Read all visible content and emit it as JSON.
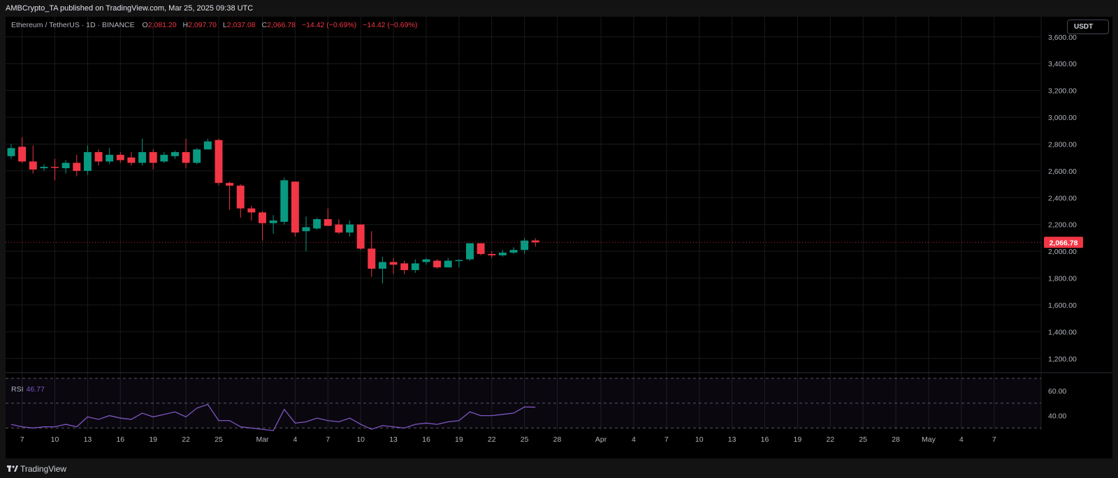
{
  "header": {
    "published": "AMBCrypto_TA published on TradingView.com, Mar 25, 2025 09:38 UTC"
  },
  "legend": {
    "symbol": "Ethereum / TetherUS · 1D · BINANCE",
    "open_label": "O",
    "open": "2,081.20",
    "high_label": "H",
    "high": "2,097.70",
    "low_label": "L",
    "low": "2,037.08",
    "close_label": "C",
    "close": "2,066.78",
    "change": "−14.42 (−0.69%)",
    "change2": "−14.42 (−0.69%)"
  },
  "currency_button": "USDT",
  "rsi": {
    "label": "RSI",
    "value": "46.77"
  },
  "footer": {
    "brand": "TradingView"
  },
  "colors": {
    "up": "#089981",
    "down": "#f23645",
    "rsi": "#7e57c2",
    "grid": "#1a1a1a",
    "axis_text": "#b2b5be",
    "background": "#000000"
  },
  "chart_data": [
    {
      "type": "candlestick",
      "title": "Ethereum / TetherUS · 1D · BINANCE",
      "ylim": [
        1100,
        3750
      ],
      "yticks": [
        1200,
        1400,
        1600,
        1800,
        2000,
        2200,
        2400,
        2600,
        2800,
        3000,
        3200,
        3400,
        3600
      ],
      "ytick_labels": [
        "1,200.00",
        "1,400.00",
        "1,600.00",
        "1,800.00",
        "2,000.00",
        "2,200.00",
        "2,400.00",
        "2,600.00",
        "2,800.00",
        "3,000.00",
        "3,200.00",
        "3,400.00",
        "3,600.00"
      ],
      "last_price": 2066.78,
      "last_price_label": "2,066.78",
      "x_start": "2025-02-06",
      "x_end": "2025-05-09",
      "xticks": [
        {
          "date": "2025-02-07",
          "label": "7"
        },
        {
          "date": "2025-02-10",
          "label": "10"
        },
        {
          "date": "2025-02-13",
          "label": "13"
        },
        {
          "date": "2025-02-16",
          "label": "16"
        },
        {
          "date": "2025-02-19",
          "label": "19"
        },
        {
          "date": "2025-02-22",
          "label": "22"
        },
        {
          "date": "2025-02-25",
          "label": "25"
        },
        {
          "date": "2025-03-01",
          "label": "Mar"
        },
        {
          "date": "2025-03-04",
          "label": "4"
        },
        {
          "date": "2025-03-07",
          "label": "7"
        },
        {
          "date": "2025-03-10",
          "label": "10"
        },
        {
          "date": "2025-03-13",
          "label": "13"
        },
        {
          "date": "2025-03-16",
          "label": "16"
        },
        {
          "date": "2025-03-19",
          "label": "19"
        },
        {
          "date": "2025-03-22",
          "label": "22"
        },
        {
          "date": "2025-03-25",
          "label": "25"
        },
        {
          "date": "2025-03-28",
          "label": "28"
        },
        {
          "date": "2025-04-01",
          "label": "Apr"
        },
        {
          "date": "2025-04-04",
          "label": "4"
        },
        {
          "date": "2025-04-07",
          "label": "7"
        },
        {
          "date": "2025-04-10",
          "label": "10"
        },
        {
          "date": "2025-04-13",
          "label": "13"
        },
        {
          "date": "2025-04-16",
          "label": "16"
        },
        {
          "date": "2025-04-19",
          "label": "19"
        },
        {
          "date": "2025-04-22",
          "label": "22"
        },
        {
          "date": "2025-04-25",
          "label": "25"
        },
        {
          "date": "2025-04-28",
          "label": "28"
        },
        {
          "date": "2025-05-01",
          "label": "May"
        },
        {
          "date": "2025-05-04",
          "label": "4"
        },
        {
          "date": "2025-05-07",
          "label": "7"
        }
      ],
      "candles": [
        {
          "date": "2025-02-06",
          "o": 2710,
          "h": 2800,
          "l": 2690,
          "c": 2770
        },
        {
          "date": "2025-02-07",
          "o": 2780,
          "h": 2850,
          "l": 2660,
          "c": 2670
        },
        {
          "date": "2025-02-08",
          "o": 2670,
          "h": 2790,
          "l": 2580,
          "c": 2610
        },
        {
          "date": "2025-02-09",
          "o": 2620,
          "h": 2650,
          "l": 2600,
          "c": 2630
        },
        {
          "date": "2025-02-10",
          "o": 2630,
          "h": 2690,
          "l": 2530,
          "c": 2625
        },
        {
          "date": "2025-02-11",
          "o": 2620,
          "h": 2680,
          "l": 2580,
          "c": 2660
        },
        {
          "date": "2025-02-12",
          "o": 2660,
          "h": 2720,
          "l": 2560,
          "c": 2600
        },
        {
          "date": "2025-02-13",
          "o": 2600,
          "h": 2790,
          "l": 2570,
          "c": 2740
        },
        {
          "date": "2025-02-14",
          "o": 2740,
          "h": 2760,
          "l": 2640,
          "c": 2670
        },
        {
          "date": "2025-02-15",
          "o": 2670,
          "h": 2770,
          "l": 2650,
          "c": 2720
        },
        {
          "date": "2025-02-16",
          "o": 2720,
          "h": 2740,
          "l": 2660,
          "c": 2680
        },
        {
          "date": "2025-02-17",
          "o": 2700,
          "h": 2740,
          "l": 2640,
          "c": 2660
        },
        {
          "date": "2025-02-18",
          "o": 2660,
          "h": 2840,
          "l": 2640,
          "c": 2740
        },
        {
          "date": "2025-02-19",
          "o": 2740,
          "h": 2760,
          "l": 2610,
          "c": 2660
        },
        {
          "date": "2025-02-20",
          "o": 2670,
          "h": 2740,
          "l": 2660,
          "c": 2720
        },
        {
          "date": "2025-02-21",
          "o": 2710,
          "h": 2750,
          "l": 2690,
          "c": 2740
        },
        {
          "date": "2025-02-22",
          "o": 2740,
          "h": 2840,
          "l": 2620,
          "c": 2660
        },
        {
          "date": "2025-02-23",
          "o": 2660,
          "h": 2770,
          "l": 2650,
          "c": 2760
        },
        {
          "date": "2025-02-24",
          "o": 2760,
          "h": 2840,
          "l": 2760,
          "c": 2820
        },
        {
          "date": "2025-02-25",
          "o": 2830,
          "h": 2840,
          "l": 2490,
          "c": 2510
        },
        {
          "date": "2025-02-26",
          "o": 2510,
          "h": 2520,
          "l": 2310,
          "c": 2490
        },
        {
          "date": "2025-02-27",
          "o": 2490,
          "h": 2500,
          "l": 2250,
          "c": 2320
        },
        {
          "date": "2025-02-28",
          "o": 2320,
          "h": 2340,
          "l": 2230,
          "c": 2290
        },
        {
          "date": "2025-03-01",
          "o": 2290,
          "h": 2300,
          "l": 2080,
          "c": 2210
        },
        {
          "date": "2025-03-02",
          "o": 2210,
          "h": 2270,
          "l": 2130,
          "c": 2230
        },
        {
          "date": "2025-03-03",
          "o": 2220,
          "h": 2550,
          "l": 2200,
          "c": 2530
        },
        {
          "date": "2025-03-04",
          "o": 2520,
          "h": 2520,
          "l": 2110,
          "c": 2140
        },
        {
          "date": "2025-03-05",
          "o": 2150,
          "h": 2260,
          "l": 2000,
          "c": 2180
        },
        {
          "date": "2025-03-06",
          "o": 2170,
          "h": 2250,
          "l": 2160,
          "c": 2240
        },
        {
          "date": "2025-03-07",
          "o": 2240,
          "h": 2320,
          "l": 2190,
          "c": 2190
        },
        {
          "date": "2025-03-08",
          "o": 2200,
          "h": 2240,
          "l": 2130,
          "c": 2140
        },
        {
          "date": "2025-03-09",
          "o": 2140,
          "h": 2230,
          "l": 2110,
          "c": 2200
        },
        {
          "date": "2025-03-10",
          "o": 2200,
          "h": 2200,
          "l": 2010,
          "c": 2020
        },
        {
          "date": "2025-03-11",
          "o": 2020,
          "h": 2150,
          "l": 1810,
          "c": 1870
        },
        {
          "date": "2025-03-12",
          "o": 1870,
          "h": 1960,
          "l": 1760,
          "c": 1920
        },
        {
          "date": "2025-03-13",
          "o": 1920,
          "h": 1950,
          "l": 1830,
          "c": 1900
        },
        {
          "date": "2025-03-14",
          "o": 1910,
          "h": 1930,
          "l": 1830,
          "c": 1860
        },
        {
          "date": "2025-03-15",
          "o": 1860,
          "h": 1940,
          "l": 1840,
          "c": 1910
        },
        {
          "date": "2025-03-16",
          "o": 1920,
          "h": 1950,
          "l": 1900,
          "c": 1940
        },
        {
          "date": "2025-03-17",
          "o": 1930,
          "h": 1940,
          "l": 1870,
          "c": 1880
        },
        {
          "date": "2025-03-18",
          "o": 1880,
          "h": 1950,
          "l": 1880,
          "c": 1930
        },
        {
          "date": "2025-03-19",
          "o": 1930,
          "h": 1940,
          "l": 1880,
          "c": 1935
        },
        {
          "date": "2025-03-20",
          "o": 1940,
          "h": 2060,
          "l": 1930,
          "c": 2060
        },
        {
          "date": "2025-03-21",
          "o": 2060,
          "h": 2060,
          "l": 1970,
          "c": 1980
        },
        {
          "date": "2025-03-22",
          "o": 1980,
          "h": 2000,
          "l": 1950,
          "c": 1970
        },
        {
          "date": "2025-03-23",
          "o": 1970,
          "h": 2010,
          "l": 1960,
          "c": 1990
        },
        {
          "date": "2025-03-24",
          "o": 1990,
          "h": 2030,
          "l": 1980,
          "c": 2010
        },
        {
          "date": "2025-03-25",
          "o": 2010,
          "h": 2100,
          "l": 1980,
          "c": 2080
        },
        {
          "date": "2025-03-26",
          "o": 2081.2,
          "h": 2097.7,
          "l": 2037.08,
          "c": 2066.78
        }
      ]
    },
    {
      "type": "line",
      "title": "RSI",
      "ylim": [
        28,
        74
      ],
      "yticks": [
        40,
        60
      ],
      "ytick_labels": [
        "40.00",
        "60.00"
      ],
      "bands": [
        30,
        50,
        70
      ],
      "series": [
        {
          "values": [
            33,
            31,
            30,
            31,
            31,
            33,
            31,
            39,
            37,
            40,
            38,
            37,
            42,
            39,
            41,
            43,
            39,
            46,
            49,
            36,
            36,
            31,
            30,
            29,
            28,
            45,
            34,
            35,
            38,
            36,
            35,
            38,
            33,
            29,
            32,
            31,
            30,
            33,
            34,
            33,
            35,
            36,
            43,
            40,
            40,
            41,
            42,
            47,
            46.77
          ]
        }
      ]
    }
  ]
}
